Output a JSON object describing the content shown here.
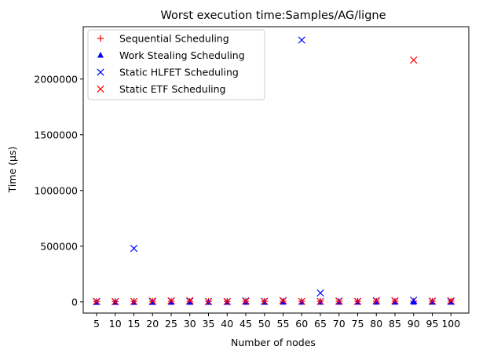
{
  "chart_data": {
    "type": "scatter",
    "title": "Worst execution time:Samples/AG/ligne",
    "xlabel": "Number of nodes",
    "ylabel": "Time (µs)",
    "categories": [
      "5",
      "10",
      "15",
      "20",
      "25",
      "30",
      "35",
      "40",
      "45",
      "50",
      "55",
      "60",
      "65",
      "70",
      "75",
      "80",
      "85",
      "90",
      "95",
      "100"
    ],
    "ylim": [
      -100000,
      2470000
    ],
    "yticks": [
      0,
      500000,
      1000000,
      1500000,
      2000000
    ],
    "ytick_labels": [
      "0",
      "500000",
      "1000000",
      "1500000",
      "2000000"
    ],
    "legend_position": "top-left",
    "grid": false,
    "series": [
      {
        "name": "Sequential Scheduling",
        "marker": "plus",
        "color": "#ff0000",
        "values": [
          3000,
          3000,
          4000,
          4000,
          5000,
          5000,
          4000,
          4000,
          6000,
          5000,
          6000,
          5000,
          5000,
          5000,
          6000,
          6000,
          6000,
          7000,
          6000,
          7000
        ]
      },
      {
        "name": "Work Stealing Scheduling",
        "marker": "triangle",
        "color": "#0000ff",
        "values": [
          -5000,
          -5000,
          -5000,
          -5000,
          -4000,
          -4000,
          -4000,
          -4000,
          -4000,
          -4000,
          -3000,
          -3000,
          -3000,
          -3000,
          -3000,
          -3000,
          -3000,
          -3000,
          -3000,
          -3000
        ]
      },
      {
        "name": "Static HLFET Scheduling",
        "marker": "x",
        "color": "#0000ff",
        "values": [
          2000,
          2000,
          480000,
          3000,
          8000,
          6000,
          2000,
          2000,
          10000,
          5000,
          12000,
          2350000,
          80000,
          8000,
          5000,
          12000,
          8000,
          15000,
          6000,
          4000
        ]
      },
      {
        "name": "Static ETF Scheduling",
        "marker": "x",
        "color": "#ff0000",
        "values": [
          5000,
          3000,
          4000,
          8000,
          10000,
          12000,
          3000,
          4000,
          6000,
          6000,
          10000,
          5000,
          4000,
          6000,
          5000,
          8000,
          10000,
          2170000,
          8000,
          10000
        ]
      }
    ]
  }
}
